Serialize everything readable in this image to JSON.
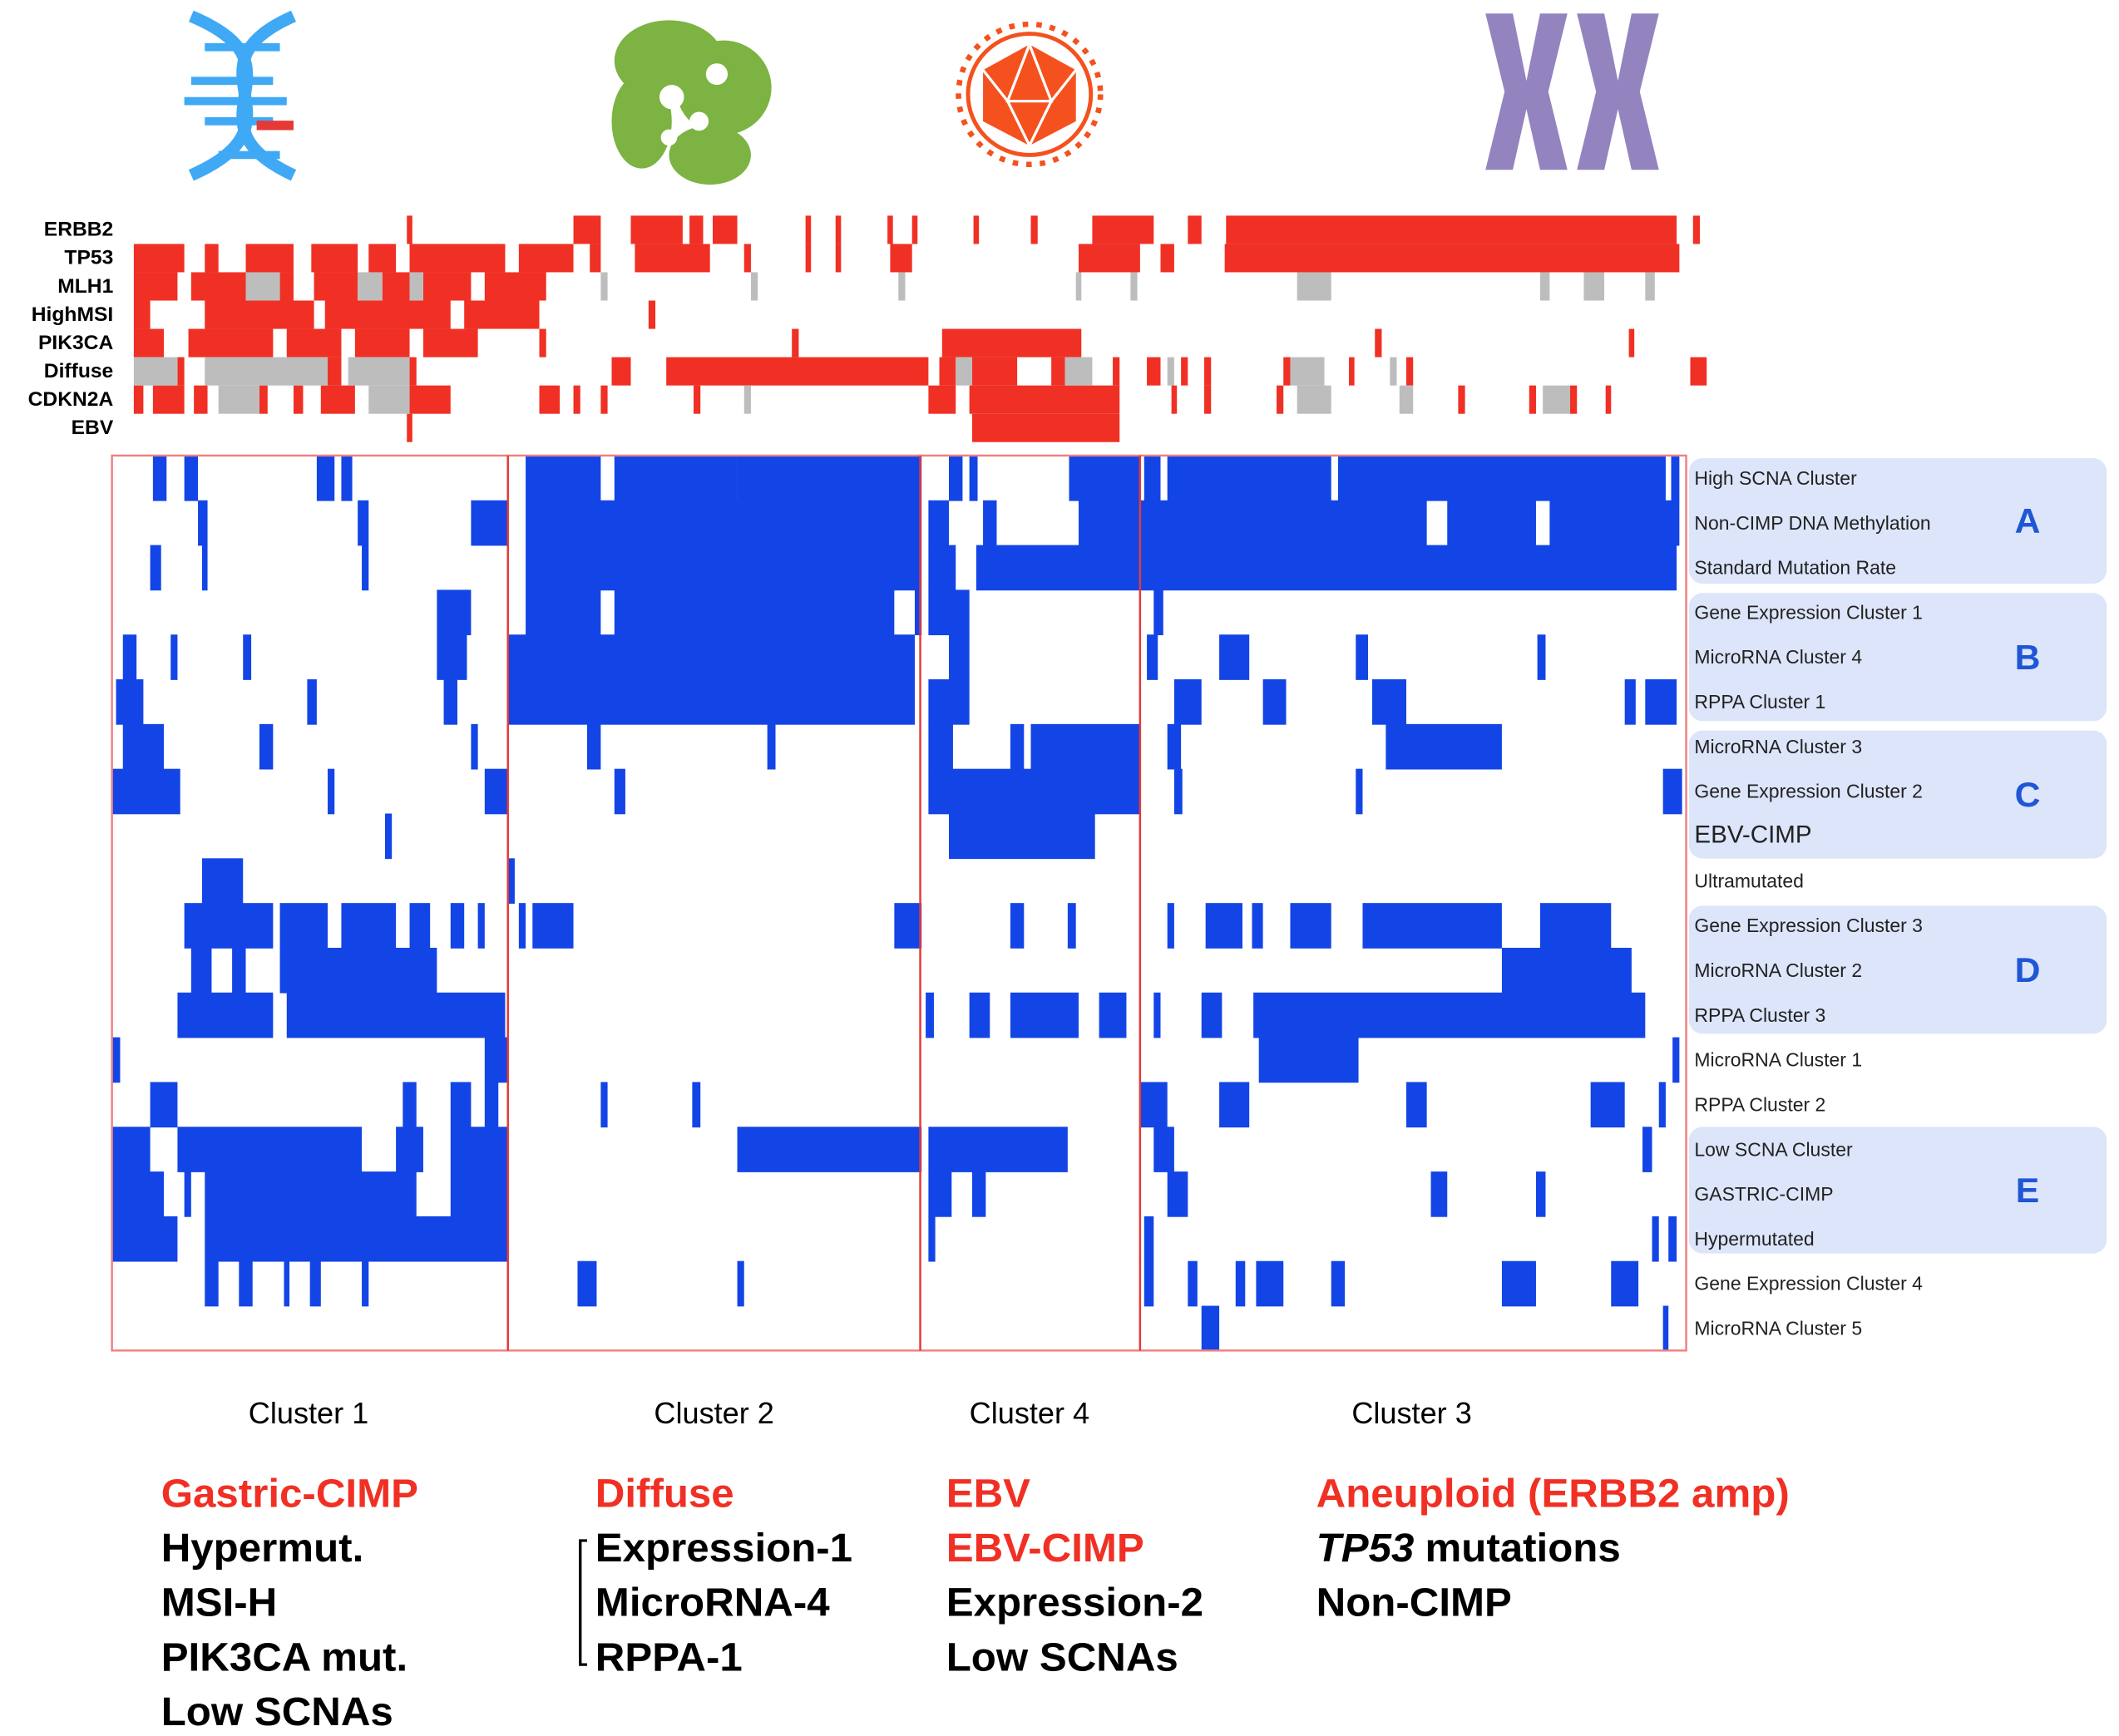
{
  "mutation_labels": [
    "ERBB2",
    "TP53",
    "MLH1",
    "HighMSI",
    "PIK3CA",
    "Diffuse",
    "CDKN2A",
    "EBV"
  ],
  "heatmap": {
    "rows": [
      "High SCNA Cluster",
      "Non-CIMP DNA Methylation",
      "Standard Mutation Rate",
      "Gene Expression Cluster 1",
      "MicroRNA Cluster 4",
      "RPPA Cluster 1",
      "MicroRNA Cluster 3",
      "Gene Expression Cluster 2",
      "EBV-CIMP",
      "Ultramutated",
      "Gene Expression Cluster 3",
      "MicroRNA Cluster 2",
      "RPPA Cluster 3",
      "MicroRNA Cluster 1",
      "RPPA Cluster 2",
      "Low SCNA Cluster",
      "GASTRIC-CIMP",
      "Hypermutated",
      "Gene Expression Cluster 4",
      "MicroRNA Cluster 5"
    ],
    "groups": [
      "A",
      "B",
      "C",
      "D",
      "E"
    ]
  },
  "clusters": [
    {
      "name": "Cluster 1",
      "highlighted": [
        "Gastric-CIMP"
      ],
      "lines": [
        "Hypermut.",
        "MSI-H",
        "PIK3CA mut.",
        "Low SCNAs"
      ]
    },
    {
      "name": "Cluster 2",
      "highlighted": [
        "Diffuse"
      ],
      "lines": [
        "Expression-1",
        "MicroRNA-4",
        "RPPA-1"
      ]
    },
    {
      "name": "Cluster 4",
      "highlighted": [
        "EBV",
        "EBV-CIMP"
      ],
      "lines": [
        "Expression-2",
        "Low SCNAs"
      ]
    },
    {
      "name": "Cluster 3",
      "highlighted": [
        "Aneuploid (ERBB2 amp)"
      ],
      "lines": [
        {
          "italic": "TP53",
          "text": "mutations"
        },
        "Non-CIMP"
      ]
    }
  ]
}
